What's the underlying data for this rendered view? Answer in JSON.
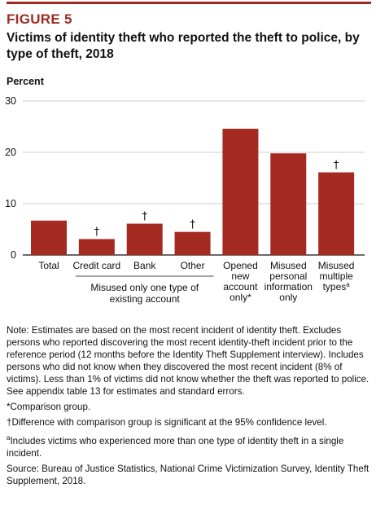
{
  "figure_label": "FIGURE 5",
  "title": "Victims of identity theft who reported the theft to police, by type of theft, 2018",
  "colors": {
    "bar": "#a52a21",
    "accent": "#9e2a22"
  },
  "chart_data": {
    "type": "bar",
    "ylabel": "Percent",
    "ylim": [
      0,
      30
    ],
    "yticks": [
      0,
      10,
      20,
      30
    ],
    "grid": true,
    "categories": [
      {
        "lines": [
          "Total"
        ],
        "value": 6.7,
        "marker": ""
      },
      {
        "lines": [
          "Credit card"
        ],
        "value": 3.1,
        "marker": "†"
      },
      {
        "lines": [
          "Bank"
        ],
        "value": 6.1,
        "marker": "†"
      },
      {
        "lines": [
          "Other"
        ],
        "value": 4.5,
        "marker": "†"
      },
      {
        "lines": [
          "Opened",
          "new",
          "account",
          "only*"
        ],
        "value": 24.6,
        "marker": ""
      },
      {
        "lines": [
          "Misused",
          "personal",
          "information",
          "only"
        ],
        "value": 19.8,
        "marker": ""
      },
      {
        "lines": [
          "Misused",
          "multiple",
          "types"
        ],
        "sup": "a",
        "value": 16.1,
        "marker": "†"
      }
    ],
    "group_label": [
      "Misused only one type of",
      "existing account"
    ]
  },
  "notes": {
    "note": "Note: Estimates are based on the most recent incident of identity theft. Excludes persons who reported discovering the most recent identity-theft incident prior to the reference period (12 months before the Identity Theft Supplement interview). Includes persons who did not know when they discovered the most recent incident (8% of victims). Less than 1% of victims did not know whether the theft was reported to police. See appendix table 13 for estimates and standard errors.",
    "comparison": "*Comparison group.",
    "dagger": "†Difference with comparison group is significant at the 95% confidence level.",
    "footnote_a_sup": "a",
    "footnote_a": "Includes victims who experienced more than one type of identity theft in a single incident.",
    "source": "Source: Bureau of Justice Statistics, National Crime Victimization Survey, Identity Theft Supplement, 2018."
  }
}
